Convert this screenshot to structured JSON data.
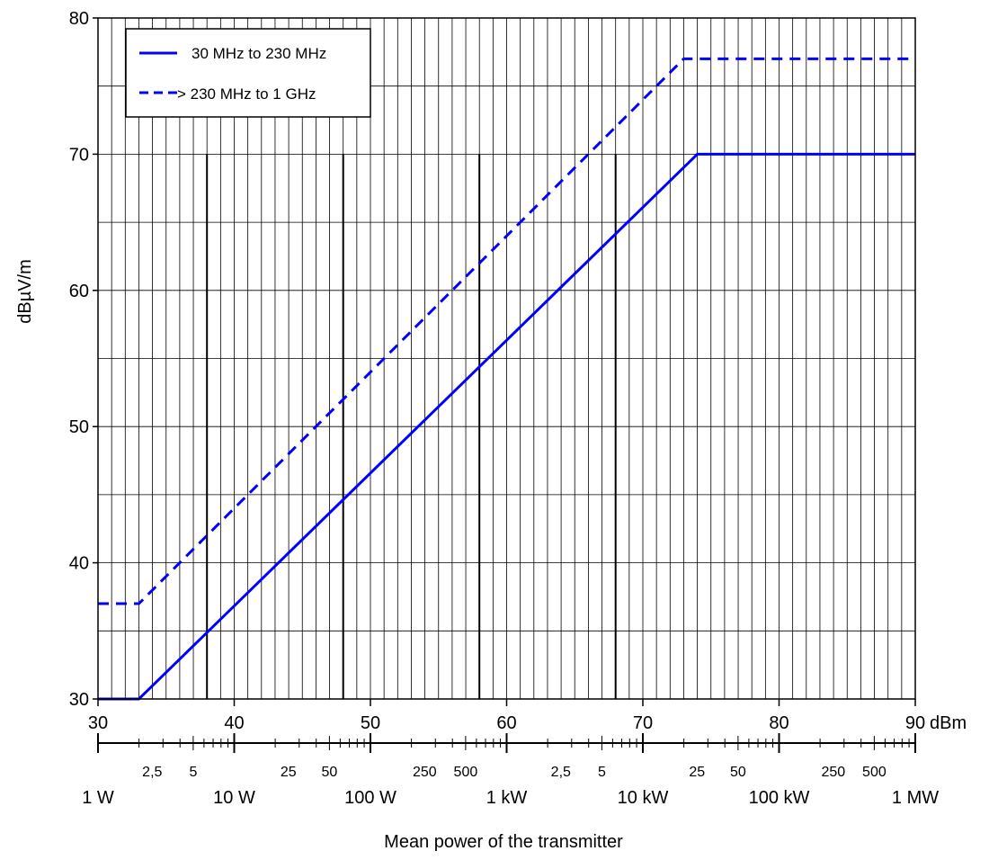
{
  "chart_data": {
    "type": "line",
    "xlabel": "Mean power of the transmitter",
    "ylabel": "dBµV/m",
    "x_unit": "dBm",
    "xlim": [
      30,
      90
    ],
    "ylim": [
      30,
      80
    ],
    "x_ticks": [
      30,
      40,
      50,
      60,
      70,
      80,
      90
    ],
    "y_ticks": [
      30,
      40,
      50,
      60,
      70,
      80
    ],
    "grid": true,
    "legend_position": "top-left",
    "series": [
      {
        "name": "30 MHz to 230 MHz",
        "style": "solid",
        "color": "#0000ff",
        "x": [
          30,
          33,
          74,
          90
        ],
        "y": [
          30,
          30,
          70,
          70
        ]
      },
      {
        "name": "> 230 MHz to 1 GHz",
        "style": "dashed",
        "color": "#0000ff",
        "x": [
          30,
          33,
          73,
          90
        ],
        "y": [
          37,
          37,
          77,
          77
        ]
      }
    ],
    "power_minor_labels": [
      {
        "dbm": 33.98,
        "label": "2,5"
      },
      {
        "dbm": 36.99,
        "label": "5"
      },
      {
        "dbm": 43.98,
        "label": "25"
      },
      {
        "dbm": 46.99,
        "label": "50"
      },
      {
        "dbm": 53.98,
        "label": "250"
      },
      {
        "dbm": 56.99,
        "label": "500"
      },
      {
        "dbm": 63.98,
        "label": "2,5"
      },
      {
        "dbm": 66.99,
        "label": "5"
      },
      {
        "dbm": 73.98,
        "label": "25"
      },
      {
        "dbm": 76.99,
        "label": "50"
      },
      {
        "dbm": 83.98,
        "label": "250"
      },
      {
        "dbm": 86.99,
        "label": "500"
      }
    ],
    "power_major_labels": [
      {
        "dbm": 30,
        "label": "1 W"
      },
      {
        "dbm": 40,
        "label": "10 W"
      },
      {
        "dbm": 50,
        "label": "100 W"
      },
      {
        "dbm": 60,
        "label": "1 kW"
      },
      {
        "dbm": 70,
        "label": "10 kW"
      },
      {
        "dbm": 80,
        "label": "100 kW"
      },
      {
        "dbm": 90,
        "label": "1 MW"
      }
    ]
  }
}
